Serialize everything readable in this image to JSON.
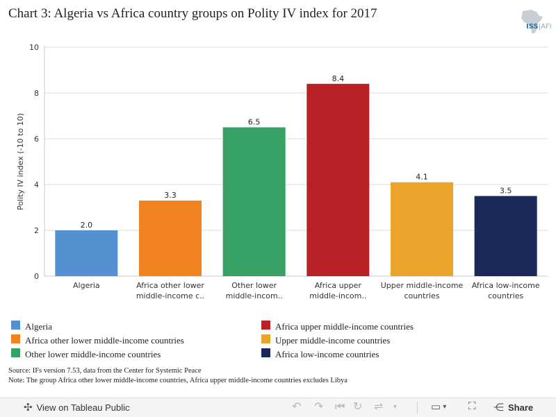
{
  "title": "Chart 3: Algeria vs Africa country groups on Polity IV index for 2017",
  "logo": {
    "text": "ISS",
    "text_suffix": "AFI"
  },
  "chart_data": {
    "type": "bar",
    "categories": [
      "Algeria",
      "Africa other lower middle-income countries",
      "Other lower middle-income countries",
      "Africa upper middle-income countries",
      "Upper middle-income countries",
      "Africa low-income countries"
    ],
    "tick_labels": [
      [
        "Algeria"
      ],
      [
        "Africa other lower",
        "middle-income c.."
      ],
      [
        "Other lower",
        "middle-incom.."
      ],
      [
        "Africa upper",
        "middle-incom.."
      ],
      [
        "Upper middle-income",
        "countries"
      ],
      [
        "Africa low-income",
        "countries"
      ]
    ],
    "values": [
      2.0,
      3.3,
      6.5,
      8.4,
      4.1,
      3.5
    ],
    "data_labels": [
      "2.0",
      "3.3",
      "6.5",
      "8.4",
      "4.1",
      "3.5"
    ],
    "colors": [
      "#5591d0",
      "#f18321",
      "#37a064",
      "#b82126",
      "#eba42b",
      "#1b295a"
    ],
    "ylabel": "Polity IV index (-10 to 10)",
    "ylim": [
      0,
      10
    ],
    "yticks": [
      0,
      2,
      4,
      6,
      8,
      10
    ],
    "grid": true,
    "legend_placement": "bottom"
  },
  "legend": [
    {
      "label": "Algeria",
      "color": "#5591d0"
    },
    {
      "label": "Africa other lower middle-income countries",
      "color": "#f18321"
    },
    {
      "label": "Other lower middle-income countries",
      "color": "#37a064"
    },
    {
      "label": "Africa upper middle-income countries",
      "color": "#b82126"
    },
    {
      "label": "Upper middle-income countries",
      "color": "#eba42b"
    },
    {
      "label": "Africa low-income countries",
      "color": "#1b295a"
    }
  ],
  "notes": {
    "source": "Source: IFs version 7.53, data from the Center for Systemic Peace",
    "note": "Note: The group Africa other lower middle-income countries, Africa upper middle-income countries excludes Libya"
  },
  "toolbar": {
    "view_label": "View on Tableau Public",
    "share_label": "Share",
    "view_icon": "tableau-logo-icon",
    "undo_icon": "undo-icon",
    "redo_icon": "redo-icon",
    "revert_icon": "revert-icon",
    "refresh_icon": "refresh-icon",
    "download_icon": "download-icon",
    "fullscreen_icon": "fullscreen-icon",
    "share_icon": "share-icon"
  }
}
